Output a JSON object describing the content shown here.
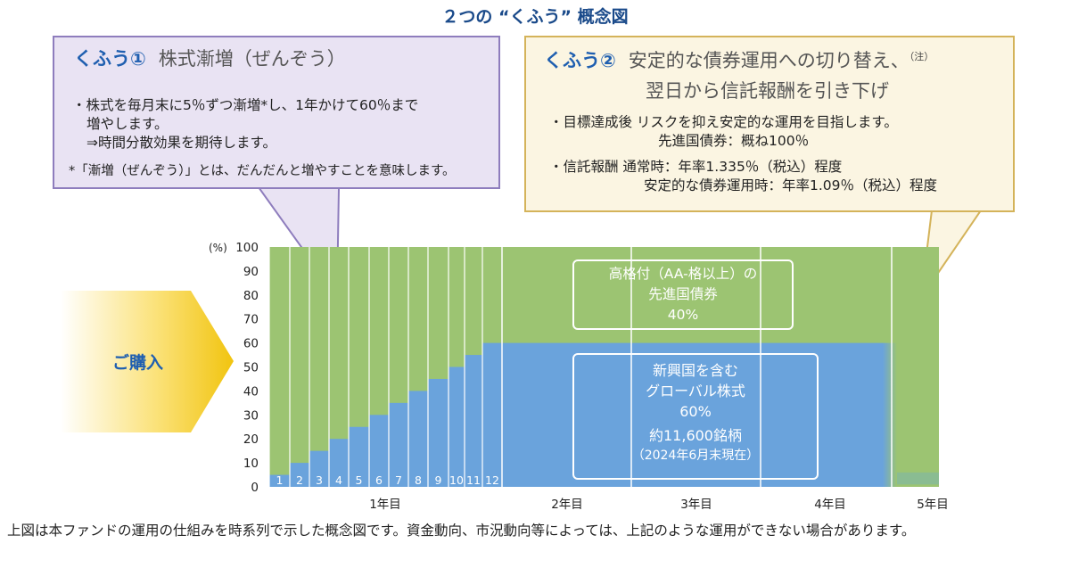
{
  "title": "２つの “くふう” 概念図",
  "kufu1": {
    "badge": "くふう①",
    "heading": "株式漸増（ぜんぞう）",
    "line1": "・株式を毎月末に5％ずつ漸増*し、1年かけて60％まで",
    "line2": "増やします。",
    "line3": "⇒時間分散効果を期待します。",
    "note": "*「漸増（ぜんぞう）」とは、だんだんと増やすことを意味します。"
  },
  "kufu2": {
    "badge": "くふう②",
    "heading_line1": "安定的な債券運用への切り替え、",
    "heading_note": "（注）",
    "heading_line2": "翌日から信託報酬を引き下げ",
    "goal_line1": "・目標達成後 リスクを抑え安定的な運用を目指します。",
    "goal_line2": "先進国債券：概ね100％",
    "fee_line1": "・信託報酬 通常時：年率1.335％（税込）程度",
    "fee_line2": "安定的な債券運用時：年率1.09％（税込）程度"
  },
  "purchase_label": "ご購入",
  "boxes": {
    "green_line1": "高格付（AA-格以上）の",
    "green_line2": "先進国債券",
    "green_line3": "40%",
    "blue_line1": "新興国を含む",
    "blue_line2": "グローバル株式",
    "blue_line3": "60%",
    "blue_line4": "約11,600銘柄",
    "blue_line5": "（2024年6月末現在）"
  },
  "footnote": "上図は本ファンドの運用の仕組みを時系列で示した概念図です。資金動向、市況動向等によっては、上記のような運用ができない場合があります。",
  "colors": {
    "green": "#9cc472",
    "blue": "#6aa3dc",
    "title": "#1a4a8a",
    "accent": "#1f5fb0"
  },
  "chart_data": {
    "type": "bar",
    "stacked": true,
    "y_unit": "(%)",
    "ylim": [
      0,
      100
    ],
    "yticks": [
      "0",
      "10",
      "20",
      "30",
      "40",
      "50",
      "60",
      "70",
      "80",
      "90",
      "100"
    ],
    "months": [
      "1",
      "2",
      "3",
      "4",
      "5",
      "6",
      "7",
      "8",
      "9",
      "10",
      "11",
      "12"
    ],
    "stock_share": [
      5,
      10,
      15,
      20,
      25,
      30,
      35,
      40,
      45,
      50,
      55,
      60
    ],
    "later_stock_share": 60,
    "final_stock_share": 0,
    "year_labels": [
      "1年目",
      "2年目",
      "3年目",
      "4年目",
      "5年目"
    ],
    "series": [
      {
        "name": "新興国を含むグローバル株式",
        "color": "#6aa3dc"
      },
      {
        "name": "先進国債券",
        "color": "#9cc472"
      }
    ]
  }
}
